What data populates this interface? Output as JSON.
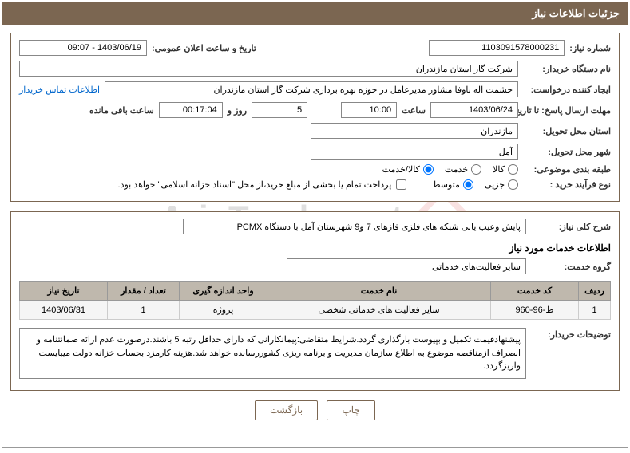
{
  "header": {
    "title": "جزئیات اطلاعات نیاز"
  },
  "top": {
    "need_number_label": "شماره نیاز:",
    "need_number": "1103091578000231",
    "announce_date_label": "تاریخ و ساعت اعلان عمومی:",
    "announce_date": "1403/06/19 - 09:07",
    "buyer_org_label": "نام دستگاه خریدار:",
    "buyer_org": "شرکت گاز استان مازندران",
    "requester_label": "ایجاد کننده درخواست:",
    "requester": "حشمت اله باوفا مشاور مدیرعامل در حوزه بهره برداری  شرکت گاز استان مازندران",
    "contact_link": "اطلاعات تماس خریدار",
    "deadline_label": "مهلت ارسال پاسخ: تا تاریخ:",
    "deadline_date": "1403/06/24",
    "hour_label": "ساعت",
    "deadline_hour": "10:00",
    "days_and": "روز و",
    "days_value": "5",
    "countdown": "00:17:04",
    "remaining_label": "ساعت باقی مانده",
    "province_label": "استان محل تحویل:",
    "province": "مازندران",
    "city_label": "شهر محل تحویل:",
    "city": "آمل",
    "category_label": "طبقه بندی موضوعی:",
    "cat_goods": "کالا",
    "cat_service": "خدمت",
    "cat_goods_service": "کالا/خدمت",
    "process_label": "نوع فرآیند خرید :",
    "proc_partial": "جزیی",
    "proc_medium": "متوسط",
    "payment_note": "پرداخت تمام یا بخشی از مبلغ خرید،از محل \"اسناد خزانه اسلامی\" خواهد بود."
  },
  "middle": {
    "general_desc_label": "شرح کلی نیاز:",
    "general_desc": "پایش وعیب یابی شبکه های فلزی فازهای 7 و9 شهرستان آمل با دستگاه PCMX",
    "services_info_title": "اطلاعات خدمات مورد نیاز",
    "service_group_label": "گروه خدمت:",
    "service_group": "سایر فعالیت‌های خدماتی"
  },
  "table": {
    "columns": [
      "ردیف",
      "کد خدمت",
      "نام خدمت",
      "واحد اندازه گیری",
      "تعداد / مقدار",
      "تاریخ نیاز"
    ],
    "rows": [
      [
        "1",
        "ط-96-960",
        "سایر فعالیت های خدماتی شخصی",
        "پروژه",
        "1",
        "1403/06/31"
      ]
    ],
    "col_widths": [
      "40px",
      "110px",
      "auto",
      "110px",
      "90px",
      "110px"
    ]
  },
  "buyer_notes": {
    "label": "توضیحات خریدار:",
    "text": "پیشنهادقیمت تکمیل و بپیوست بارگذاری گردد.شرایط متقاضی:پیمانکارانی که دارای حداقل رتبه 5 باشند.درصورت عدم ارائه ضمانتنامه و انصراف ازمناقصه موضوع به اطلاع سازمان مدیریت و برنامه ریزی کشوررسانده خواهد شد.هزینه کارمزد بحساب خزانه دولت میبایست واریزگردد."
  },
  "buttons": {
    "print": "چاپ",
    "back": "بازگشت"
  },
  "watermark": {
    "text": "AriaTender.net"
  },
  "colors": {
    "header_bg": "#7b6651",
    "border": "#7b6651",
    "th_bg": "#bfb8ad"
  }
}
